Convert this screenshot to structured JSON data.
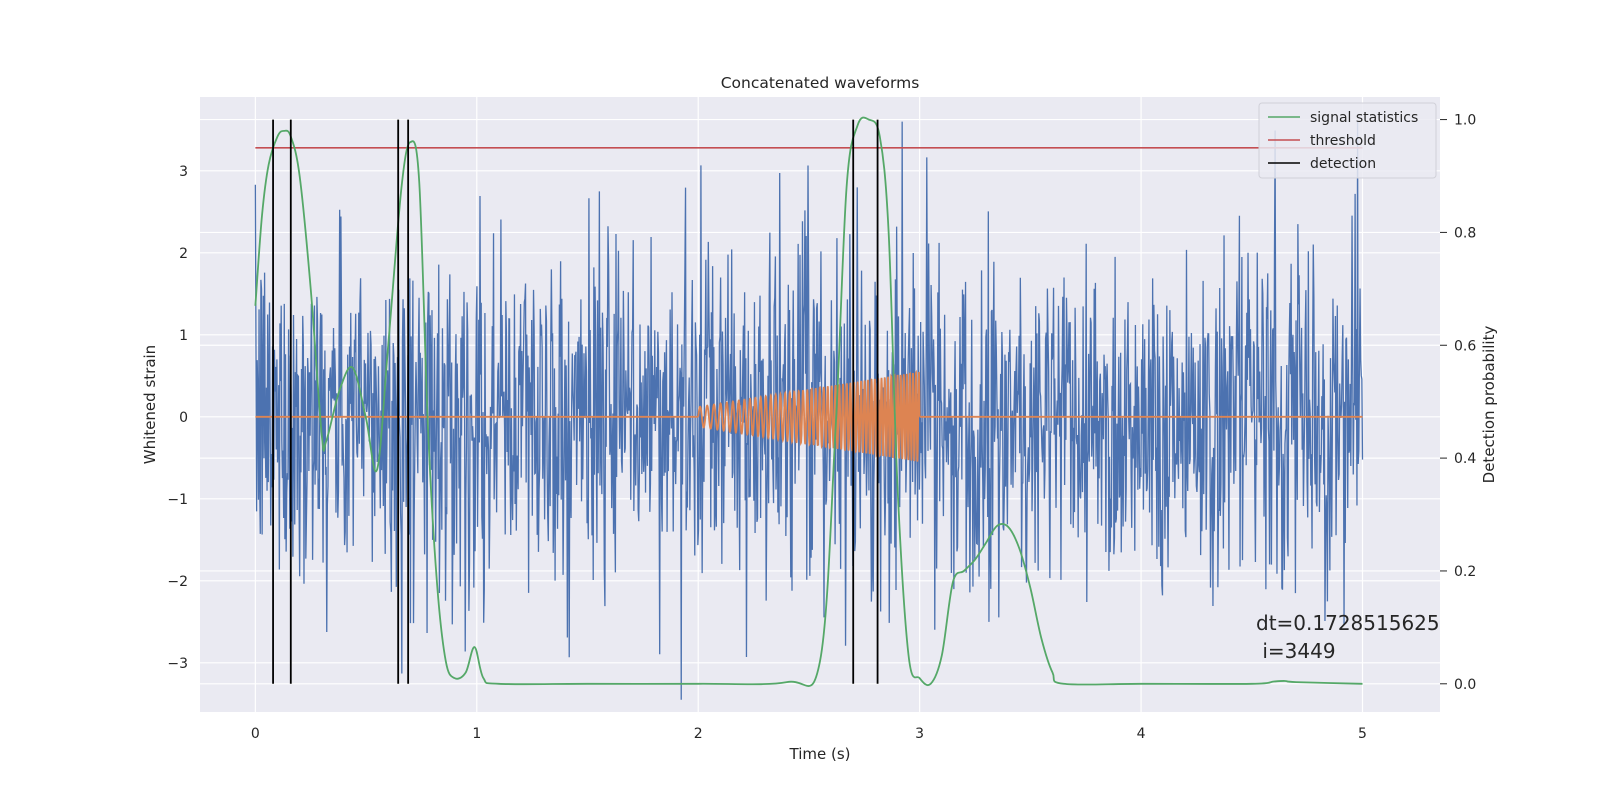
{
  "chart_data": {
    "type": "line",
    "title": "Concatenated waveforms",
    "xlabel": "Time (s)",
    "ylabel": "Whitened strain",
    "y2label": "Detection probability",
    "xlim": [
      -0.25,
      5.35
    ],
    "ylim": [
      -3.6,
      3.9
    ],
    "y2lim": [
      -0.05,
      1.04
    ],
    "x_ticks": [
      0,
      1,
      2,
      3,
      4,
      5
    ],
    "y_ticks": [
      -3,
      -2,
      -1,
      0,
      1,
      2,
      3
    ],
    "y2_ticks": [
      0.0,
      0.2,
      0.4,
      0.6,
      0.8,
      1.0
    ],
    "x_tick_labels": [
      "0",
      "1",
      "2",
      "3",
      "4",
      "5"
    ],
    "y_tick_labels": [
      "−3",
      "−2",
      "−1",
      "0",
      "1",
      "2",
      "3"
    ],
    "y2_tick_labels": [
      "0.0",
      "0.2",
      "0.4",
      "0.6",
      "0.8",
      "1.0"
    ],
    "grid": true,
    "legend_position": "top-right",
    "legend": [
      "signal statistics",
      "threshold",
      "detection"
    ],
    "colors": {
      "noise": "#4c72b0",
      "template": "#dd8452",
      "signal_statistics": "#55a868",
      "threshold": "#c44e52",
      "detection": "#000000",
      "axes_bg": "#eaeaf2",
      "grid": "#ffffff"
    },
    "series": [
      {
        "name": "whitened strain (noise)",
        "axis": "left",
        "x_range": [
          0,
          5
        ],
        "envelope": {
          "typical_abs": 1.2,
          "min": -3.45,
          "max": 3.6
        }
      },
      {
        "name": "injected chirp",
        "axis": "left",
        "x_range": [
          2,
          3
        ],
        "amplitude_range": [
          0.12,
          0.55
        ],
        "frequency_hz_range": [
          30,
          75
        ]
      },
      {
        "name": "signal statistics",
        "axis": "right",
        "x": [
          0.0,
          0.03,
          0.06,
          0.1,
          0.13,
          0.16,
          0.2,
          0.25,
          0.3,
          0.32,
          0.38,
          0.44,
          0.5,
          0.55,
          0.6,
          0.66,
          0.7,
          0.74,
          0.78,
          0.82,
          0.86,
          0.9,
          0.95,
          0.99,
          1.03,
          1.1,
          1.5,
          2.0,
          2.4,
          2.55,
          2.62,
          2.67,
          2.72,
          2.77,
          2.82,
          2.86,
          2.9,
          2.95,
          3.0,
          3.05,
          3.1,
          3.15,
          3.2,
          3.25,
          3.3,
          3.35,
          3.4,
          3.45,
          3.5,
          3.55,
          3.6,
          3.65,
          4.0,
          4.5,
          4.6,
          4.65,
          4.7,
          5.0
        ],
        "y": [
          0.67,
          0.83,
          0.92,
          0.97,
          0.98,
          0.97,
          0.9,
          0.7,
          0.44,
          0.43,
          0.52,
          0.56,
          0.47,
          0.38,
          0.6,
          0.88,
          0.96,
          0.89,
          0.45,
          0.18,
          0.04,
          0.01,
          0.02,
          0.065,
          0.01,
          0.0,
          0.0,
          0.0,
          0.003,
          0.04,
          0.45,
          0.88,
          0.99,
          1.0,
          0.97,
          0.8,
          0.35,
          0.05,
          0.01,
          0.0,
          0.05,
          0.18,
          0.2,
          0.22,
          0.25,
          0.28,
          0.278,
          0.24,
          0.17,
          0.08,
          0.02,
          0.0,
          0.0,
          0.0,
          0.004,
          0.005,
          0.003,
          0.0
        ]
      },
      {
        "name": "threshold",
        "axis": "right",
        "x": [
          0,
          5
        ],
        "y": [
          0.95,
          0.95
        ]
      },
      {
        "name": "detection",
        "axis": "right",
        "x": [
          0.08,
          0.16,
          0.645,
          0.69,
          2.7,
          2.81
        ],
        "y_range": [
          0.0,
          1.0
        ]
      }
    ],
    "annotations": [
      "dt=0.1728515625",
      " i=3449"
    ]
  }
}
